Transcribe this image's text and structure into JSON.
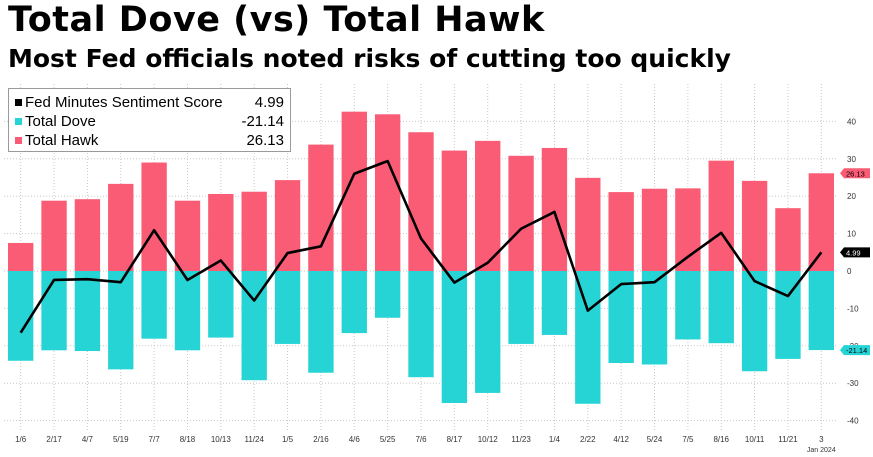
{
  "title": "Total Dove (vs) Total Hawk",
  "subtitle": "Most Fed officials noted risks of cutting too quickly",
  "colors": {
    "hawk": "#f95c74",
    "dove": "#26d4d6",
    "score": "#000000",
    "grid": "#c8c8c8"
  },
  "legend": {
    "items": [
      {
        "name": "Fed Minutes Sentiment Score",
        "value": "4.99",
        "color": "#000000"
      },
      {
        "name": "Total Dove",
        "value": "-21.14",
        "color": "#26d4d6"
      },
      {
        "name": "Total Hawk",
        "value": "26.13",
        "color": "#f95c74"
      }
    ]
  },
  "chart_data": {
    "type": "bar",
    "categories": [
      "1/6",
      "2/17",
      "4/7",
      "5/19",
      "7/7",
      "8/18",
      "10/13",
      "11/24",
      "1/5",
      "2/16",
      "4/6",
      "5/25",
      "7/6",
      "8/17",
      "10/12",
      "11/23",
      "1/4",
      "2/22",
      "4/12",
      "5/24",
      "7/5",
      "8/16",
      "10/11",
      "11/21",
      "3"
    ],
    "x_sublabel_last": "Jan 2024",
    "series": [
      {
        "name": "Total Hawk",
        "type": "bar",
        "values": [
          7.5,
          18.8,
          19.2,
          23.3,
          29.0,
          18.8,
          20.6,
          21.2,
          24.3,
          33.8,
          42.6,
          41.9,
          37.1,
          32.2,
          34.8,
          30.8,
          32.9,
          24.9,
          21.1,
          22.0,
          22.1,
          29.5,
          24.1,
          16.8,
          26.13
        ]
      },
      {
        "name": "Total Dove",
        "type": "bar",
        "values": [
          -24.0,
          -21.2,
          -21.4,
          -26.3,
          -18.1,
          -21.2,
          -17.8,
          -29.2,
          -19.5,
          -27.2,
          -16.6,
          -12.5,
          -28.4,
          -35.3,
          -32.6,
          -19.5,
          -17.1,
          -35.5,
          -24.6,
          -25.0,
          -18.3,
          -19.3,
          -26.8,
          -23.5,
          -21.14
        ]
      },
      {
        "name": "Fed Minutes Sentiment Score",
        "type": "line",
        "values": [
          -16.5,
          -2.4,
          -2.2,
          -3.0,
          10.9,
          -2.4,
          2.8,
          -7.9,
          4.8,
          6.6,
          26.0,
          29.4,
          8.7,
          -3.1,
          2.2,
          11.3,
          15.8,
          -10.6,
          -3.5,
          -3.0,
          3.8,
          10.2,
          -2.7,
          -6.7,
          4.99
        ]
      }
    ],
    "yticks": [
      40,
      30,
      20,
      10,
      0,
      -10,
      -20,
      -30,
      -40
    ],
    "ylim": [
      -42,
      48
    ],
    "last_value_labels": [
      "26.13",
      "4.99",
      "-21.14"
    ],
    "grid": true,
    "y_axis_side": "right",
    "legend_position": "top-left"
  }
}
